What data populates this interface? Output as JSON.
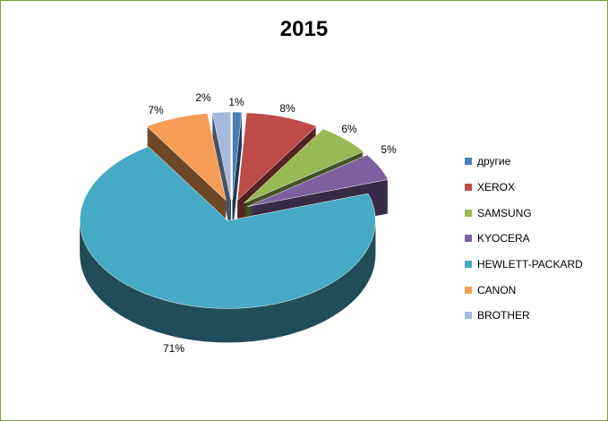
{
  "chart_data": {
    "type": "pie",
    "title": "2015",
    "variant": "3d-exploded",
    "categories": [
      "другие",
      "XEROX",
      "SAMSUNG",
      "KYOCERA",
      "HEWLETT-PACKARD",
      "CANON",
      "BROTHER"
    ],
    "values": [
      1,
      8,
      6,
      5,
      71,
      7,
      2
    ],
    "labels": [
      "1%",
      "8%",
      "6%",
      "5%",
      "71%",
      "7%",
      "2%"
    ],
    "colors": [
      "#4a7ebb",
      "#be4b48",
      "#98b954",
      "#7d60a0",
      "#46aac5",
      "#f59d56",
      "#a5b9de"
    ],
    "legend_position": "right"
  }
}
